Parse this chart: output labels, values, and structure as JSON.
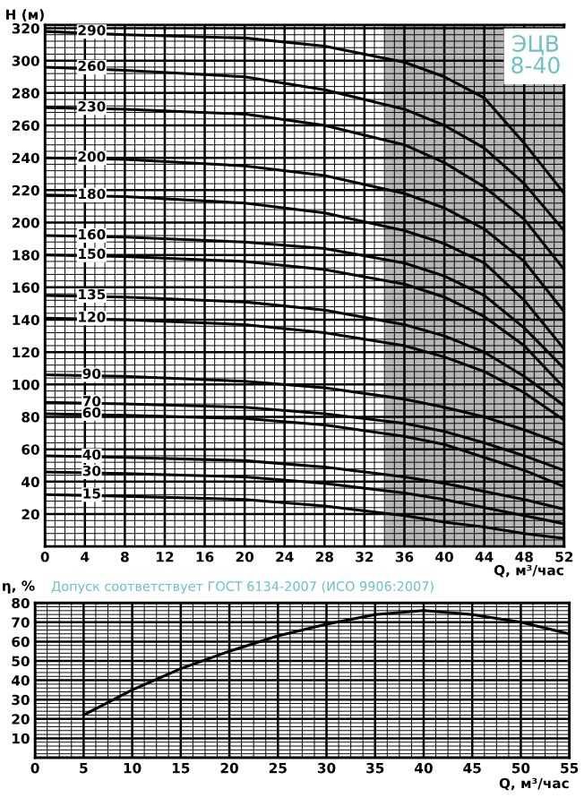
{
  "chart_data": [
    {
      "type": "line",
      "ylabel": "H (м)",
      "xlabel": "Q, м³/час",
      "annotations": [
        "ЭЦВ\n8-40"
      ],
      "x": [
        0,
        8,
        20,
        28,
        36,
        40,
        44,
        48,
        52
      ],
      "series": [
        {
          "name": "290",
          "color": "#000000",
          "values": [
            318,
            316,
            314,
            309,
            299,
            290,
            277,
            249,
            218
          ]
        },
        {
          "name": "260",
          "color": "#000000",
          "values": [
            296,
            294,
            290,
            282,
            270,
            260,
            246,
            224,
            195
          ]
        },
        {
          "name": "230",
          "color": "#000000",
          "values": [
            271,
            270,
            267,
            260,
            248,
            237,
            222,
            202,
            171
          ]
        },
        {
          "name": "200",
          "color": "#000000",
          "values": [
            240,
            239,
            235,
            229,
            218,
            209,
            196,
            176,
            145
          ]
        },
        {
          "name": "180",
          "color": "#000000",
          "values": [
            217,
            216,
            212,
            206,
            195,
            187,
            175,
            152,
            122
          ]
        },
        {
          "name": "160",
          "color": "#000000",
          "values": [
            192,
            191,
            188,
            184,
            175,
            167,
            155,
            135,
            110
          ]
        },
        {
          "name": "150",
          "color": "#000000",
          "values": [
            180,
            179,
            176,
            171,
            162,
            154,
            142,
            124,
            98
          ]
        },
        {
          "name": "135",
          "color": "#000000",
          "values": [
            155,
            154,
            151,
            146,
            137,
            130,
            120,
            105,
            87
          ]
        },
        {
          "name": "120",
          "color": "#000000",
          "values": [
            141,
            140,
            137,
            132,
            124,
            117,
            108,
            95,
            78
          ]
        },
        {
          "name": "90",
          "color": "#000000",
          "values": [
            106,
            105,
            102,
            98,
            91,
            86,
            80,
            72,
            63
          ]
        },
        {
          "name": "70",
          "color": "#000000",
          "values": [
            89,
            88,
            86,
            82,
            76,
            71,
            64,
            56,
            47
          ]
        },
        {
          "name": "60",
          "color": "#000000",
          "values": [
            82,
            81,
            79,
            75,
            68,
            63,
            55,
            47,
            37
          ]
        },
        {
          "name": "40",
          "color": "#000000",
          "values": [
            56,
            55,
            53,
            49,
            43,
            39,
            34,
            29,
            23
          ]
        },
        {
          "name": "30",
          "color": "#000000",
          "values": [
            46,
            45,
            43,
            39,
            33,
            29,
            24,
            19,
            14
          ]
        },
        {
          "name": "15",
          "color": "#000000",
          "values": [
            32,
            31,
            29,
            25,
            19,
            15,
            12,
            8,
            5
          ]
        }
      ],
      "xlim": [
        0,
        52
      ],
      "xticks": [
        0,
        4,
        8,
        12,
        16,
        20,
        24,
        28,
        32,
        36,
        40,
        44,
        48,
        52
      ],
      "ylim": [
        0,
        322
      ],
      "yticks": [
        20,
        40,
        60,
        80,
        100,
        120,
        140,
        160,
        180,
        200,
        220,
        240,
        260,
        280,
        300,
        320
      ],
      "bands": [
        {
          "axis": "x",
          "from": 34,
          "to": 52,
          "color": "#b8b8b8"
        }
      ],
      "grid": true
    },
    {
      "type": "line",
      "ylabel": "η, %",
      "xlabel": "Q, м³/час",
      "annotations": [
        "Допуск соответствует ГОСТ 6134-2007 (ИСО 9906:2007)"
      ],
      "x": [
        5,
        10,
        15,
        20,
        25,
        30,
        35,
        40,
        45,
        50,
        55
      ],
      "series": [
        {
          "color": "#000000",
          "values": [
            22,
            35,
            46,
            55,
            63,
            69,
            74,
            76,
            74,
            70,
            64
          ]
        }
      ],
      "xlim": [
        0,
        55
      ],
      "xticks": [
        0,
        5,
        10,
        15,
        20,
        25,
        30,
        35,
        40,
        45,
        50,
        55
      ],
      "ylim": [
        0,
        80
      ],
      "yticks": [
        10,
        20,
        30,
        40,
        50,
        60,
        70,
        80
      ],
      "grid": true
    }
  ]
}
